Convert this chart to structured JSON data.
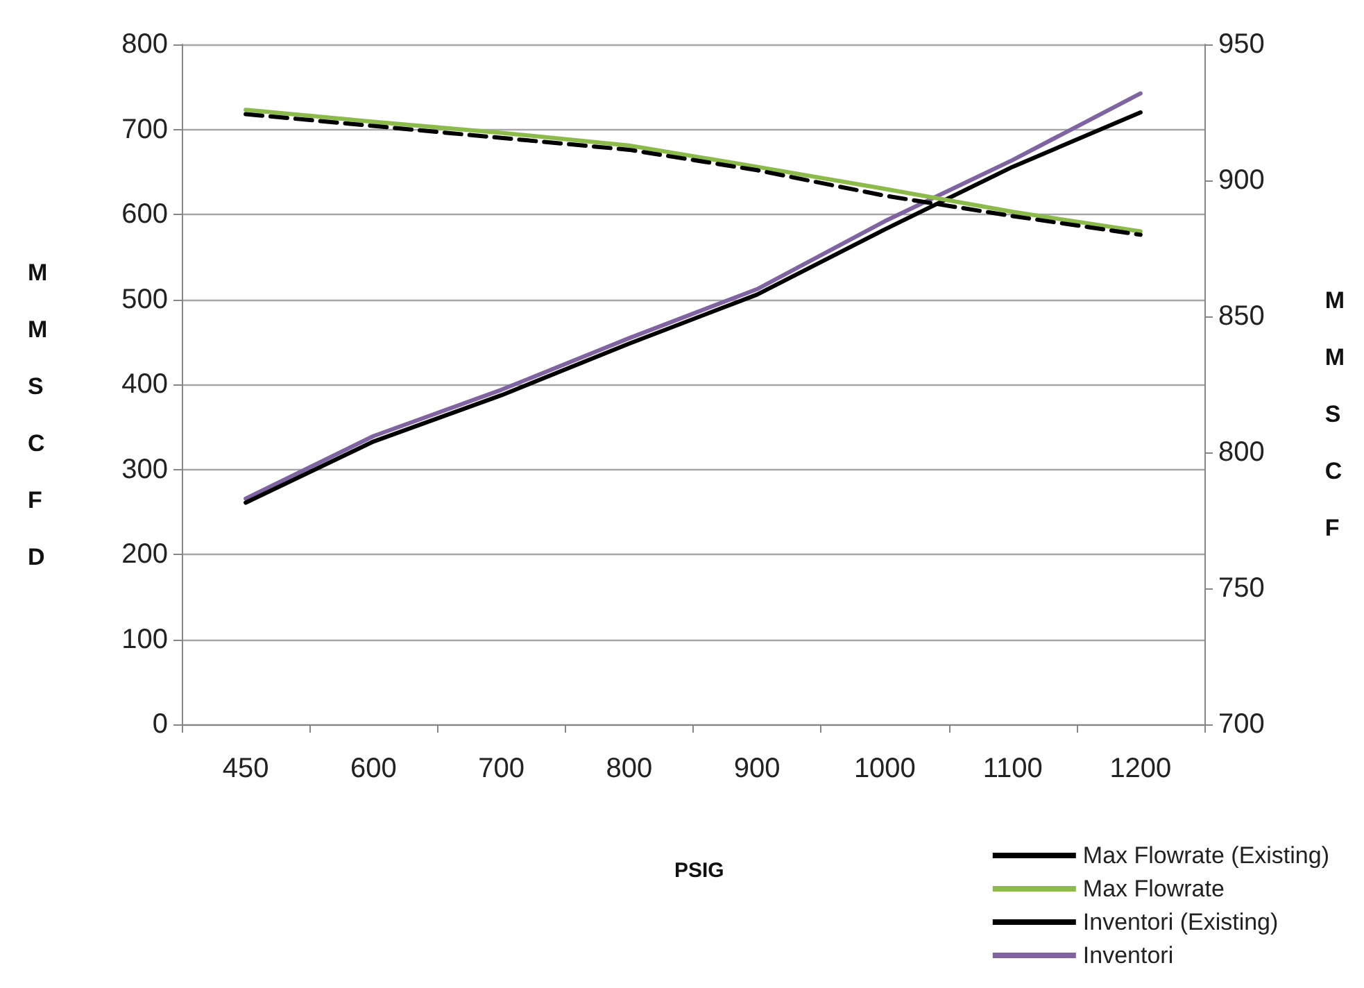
{
  "chart_data": {
    "type": "line",
    "xlabel": "PSIG",
    "ylabel": "MMSCFD",
    "y2label": "MMSCF",
    "categories": [
      "450",
      "600",
      "700",
      "800",
      "900",
      "1000",
      "1100",
      "1200"
    ],
    "series": [
      {
        "name": "Max Flowrate (Existing)",
        "color": "#000000",
        "line_style": "dashed",
        "values": [
          718,
          704,
          690,
          676,
          652,
          622,
          598,
          576
        ]
      },
      {
        "name": "Max Flowrate",
        "color": "#8cbb4c",
        "values": [
          723,
          709,
          696,
          681,
          656,
          630,
          603,
          580
        ]
      },
      {
        "name": "Inventori (Existing)",
        "color": "#000000",
        "axis": "y2",
        "values": [
          781.5,
          804,
          821,
          840,
          858,
          882,
          905,
          925
        ]
      },
      {
        "name": "Inventori",
        "color": "#8064a2",
        "axis": "y2",
        "values": [
          783,
          806,
          823,
          842,
          860,
          885,
          907.5,
          932
        ]
      }
    ],
    "ylim": [
      0,
      800
    ],
    "yticks": [
      0,
      100,
      200,
      300,
      400,
      500,
      600,
      700,
      800
    ],
    "y2lim": [
      700,
      950
    ],
    "y2ticks": [
      700,
      750,
      800,
      850,
      900,
      950
    ],
    "grid": "y",
    "legend": "bottom right",
    "marker": "none",
    "line_style": "solid"
  }
}
